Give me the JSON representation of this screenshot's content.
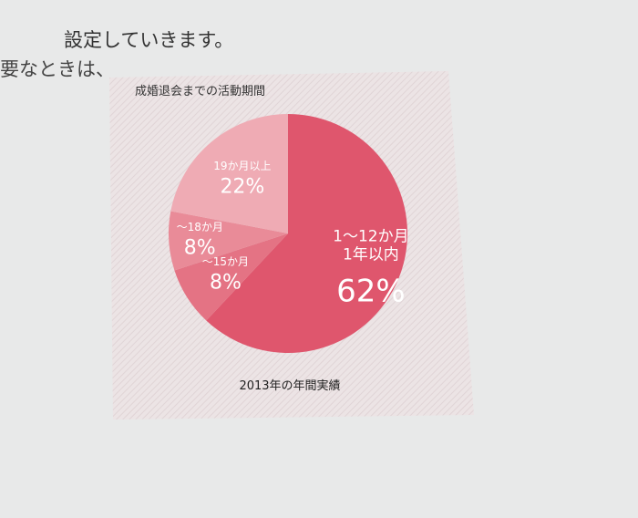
{
  "page_text": [
    "設定していきます。",
    "要なときは、"
  ],
  "chart_data": {
    "type": "pie",
    "title": "成婚退会までの活動期間",
    "categories": [
      "1〜12か月\n1年以内",
      "〜15か月",
      "〜18か月",
      "19か月以上"
    ],
    "values": [
      62,
      8,
      8,
      22
    ],
    "value_labels": [
      "62%",
      "8%",
      "8%",
      "22%"
    ],
    "colors": [
      "#df566d",
      "#e47384",
      "#e98b98",
      "#efabb4"
    ],
    "footnote": "2013年の年間実績"
  }
}
